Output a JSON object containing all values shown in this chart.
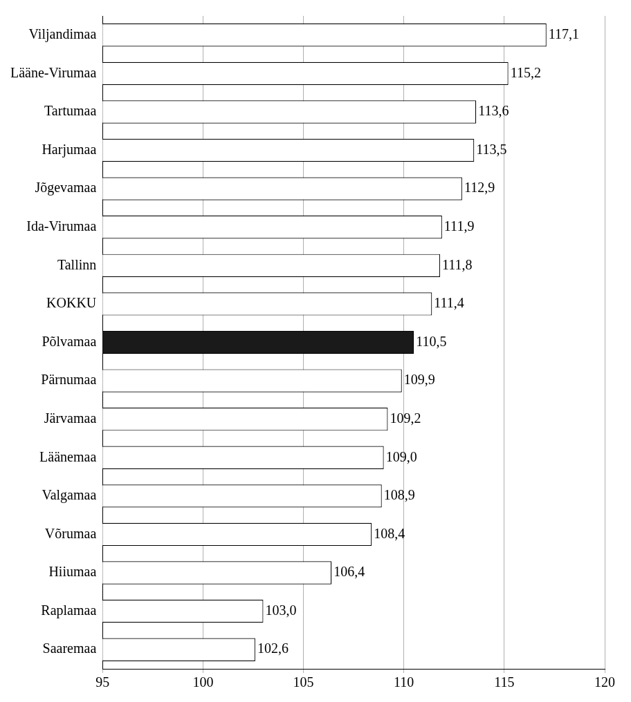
{
  "chart_data": {
    "type": "bar",
    "orientation": "horizontal",
    "categories": [
      "Viljandimaa",
      "Lääne-Virumaa",
      "Tartumaa",
      "Harjumaa",
      "Jõgevamaa",
      "Ida-Virumaa",
      "Tallinn",
      "KOKKU",
      "Põlvamaa",
      "Pärnumaa",
      "Järvamaa",
      "Läänemaa",
      "Valgamaa",
      "Võrumaa",
      "Hiiumaa",
      "Raplamaa",
      "Saaremaa"
    ],
    "values": [
      117.1,
      115.2,
      113.6,
      113.5,
      112.9,
      111.9,
      111.8,
      111.4,
      110.5,
      109.9,
      109.2,
      109.0,
      108.9,
      108.4,
      106.4,
      103.0,
      102.6
    ],
    "value_labels": [
      "117,1",
      "115,2",
      "113,6",
      "113,5",
      "112,9",
      "111,9",
      "111,8",
      "111,4",
      "110,5",
      "109,9",
      "109,2",
      "109,0",
      "108,9",
      "108,4",
      "106,4",
      "103,0",
      "102,6"
    ],
    "colors": [
      "#ffffff",
      "#ffffff",
      "#ffffff",
      "#ffffff",
      "#ffffff",
      "#ffffff",
      "#ffffff",
      "#ffffff",
      "#1a1a1a",
      "#ffffff",
      "#ffffff",
      "#ffffff",
      "#ffffff",
      "#ffffff",
      "#ffffff",
      "#ffffff",
      "#ffffff"
    ],
    "xlim": [
      95,
      120
    ],
    "xticks": [
      95,
      100,
      105,
      110,
      115,
      120
    ],
    "grid": "x",
    "legend": false
  }
}
